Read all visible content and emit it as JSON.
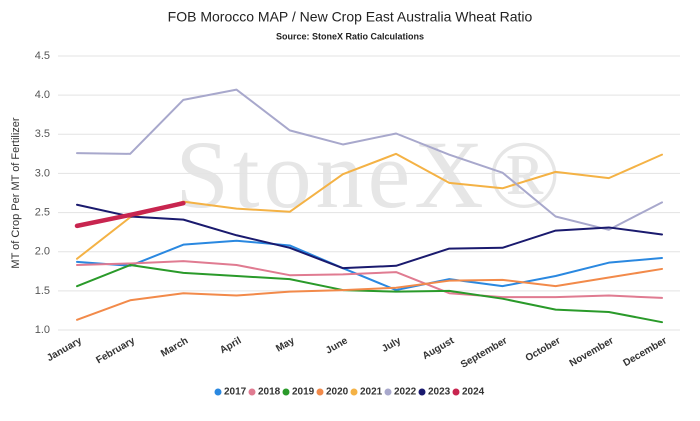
{
  "chart_data": {
    "type": "line",
    "title": "FOB Morocco MAP / New Crop East Australia Wheat Ratio",
    "subtitle": "Source: StoneX Ratio Calculations",
    "y_label": "MT of Crop Per MT of Fertilizer",
    "watermark": "StoneX®",
    "categories": [
      "January",
      "February",
      "March",
      "April",
      "May",
      "June",
      "July",
      "August",
      "September",
      "October",
      "November",
      "December"
    ],
    "ylim": [
      1.0,
      4.5
    ],
    "yticks": [
      {
        "value": 1,
        "label": "1.0"
      },
      1.5,
      {
        "value": 2,
        "label": "2.0"
      },
      2.5,
      {
        "value": 3,
        "label": "3.0"
      },
      3.5,
      {
        "value": 4,
        "label": "4.0"
      },
      4.5
    ],
    "grid": true,
    "legend": "bottom",
    "series": [
      {
        "name": "2017",
        "color": "#2a88e0",
        "values": [
          1.87,
          1.82,
          2.09,
          2.14,
          2.08,
          1.79,
          1.51,
          1.65,
          1.56,
          1.69,
          1.86,
          1.92
        ]
      },
      {
        "name": "2018",
        "color": "#e07b91",
        "values": [
          1.83,
          1.85,
          1.88,
          1.83,
          1.7,
          1.71,
          1.74,
          1.47,
          1.42,
          1.42,
          1.44,
          1.41
        ]
      },
      {
        "name": "2019",
        "color": "#2a9a2a",
        "values": [
          1.56,
          1.83,
          1.73,
          1.69,
          1.65,
          1.51,
          1.49,
          1.5,
          1.4,
          1.26,
          1.23,
          1.1
        ]
      },
      {
        "name": "2020",
        "color": "#f28a4a",
        "values": [
          1.13,
          1.38,
          1.47,
          1.44,
          1.49,
          1.51,
          1.54,
          1.63,
          1.64,
          1.56,
          1.67,
          1.78
        ]
      },
      {
        "name": "2021",
        "color": "#f4b245",
        "values": [
          1.91,
          2.44,
          2.64,
          2.55,
          2.51,
          2.99,
          3.25,
          2.88,
          2.81,
          3.02,
          2.94,
          3.24
        ]
      },
      {
        "name": "2022",
        "color": "#a8a8cc",
        "values": [
          3.26,
          3.25,
          3.94,
          4.07,
          3.55,
          3.37,
          3.51,
          3.24,
          3.01,
          2.45,
          2.28,
          2.63
        ]
      },
      {
        "name": "2023",
        "color": "#1a1a6e",
        "values": [
          2.6,
          2.45,
          2.41,
          2.21,
          2.05,
          1.79,
          1.82,
          2.04,
          2.05,
          2.27,
          2.31,
          2.22
        ]
      },
      {
        "name": "2024",
        "color": "#c8254f",
        "values": [
          2.33,
          2.47,
          2.62,
          null,
          null,
          null,
          null,
          null,
          null,
          null,
          null,
          null
        ]
      }
    ]
  }
}
